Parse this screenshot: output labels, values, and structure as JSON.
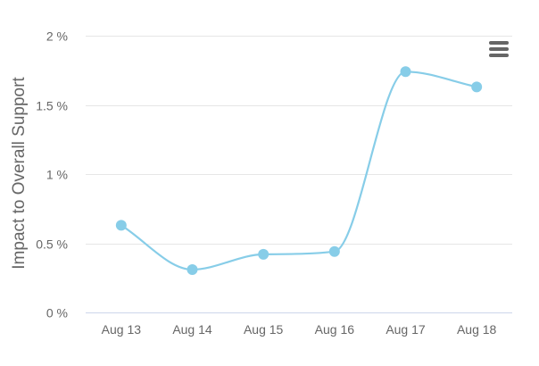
{
  "chart_data": {
    "type": "line",
    "smooth": true,
    "categories": [
      "Aug 13",
      "Aug 14",
      "Aug 15",
      "Aug 16",
      "Aug 17",
      "Aug 18"
    ],
    "series": [
      {
        "values": [
          0.63,
          0.31,
          0.42,
          0.44,
          1.74,
          1.63
        ],
        "color": "#87cde8"
      }
    ],
    "title": "",
    "xlabel": "",
    "ylabel": "Impact to Overall Support",
    "ylim": [
      0,
      2
    ],
    "yticks": [
      0,
      0.5,
      1,
      1.5,
      2
    ],
    "ytick_labels": [
      "0 %",
      "0.5 %",
      "1 %",
      "1.5 %",
      "2 %"
    ],
    "grid": true,
    "legend": "none"
  },
  "menu": {
    "icon": "hamburger-menu-icon"
  }
}
